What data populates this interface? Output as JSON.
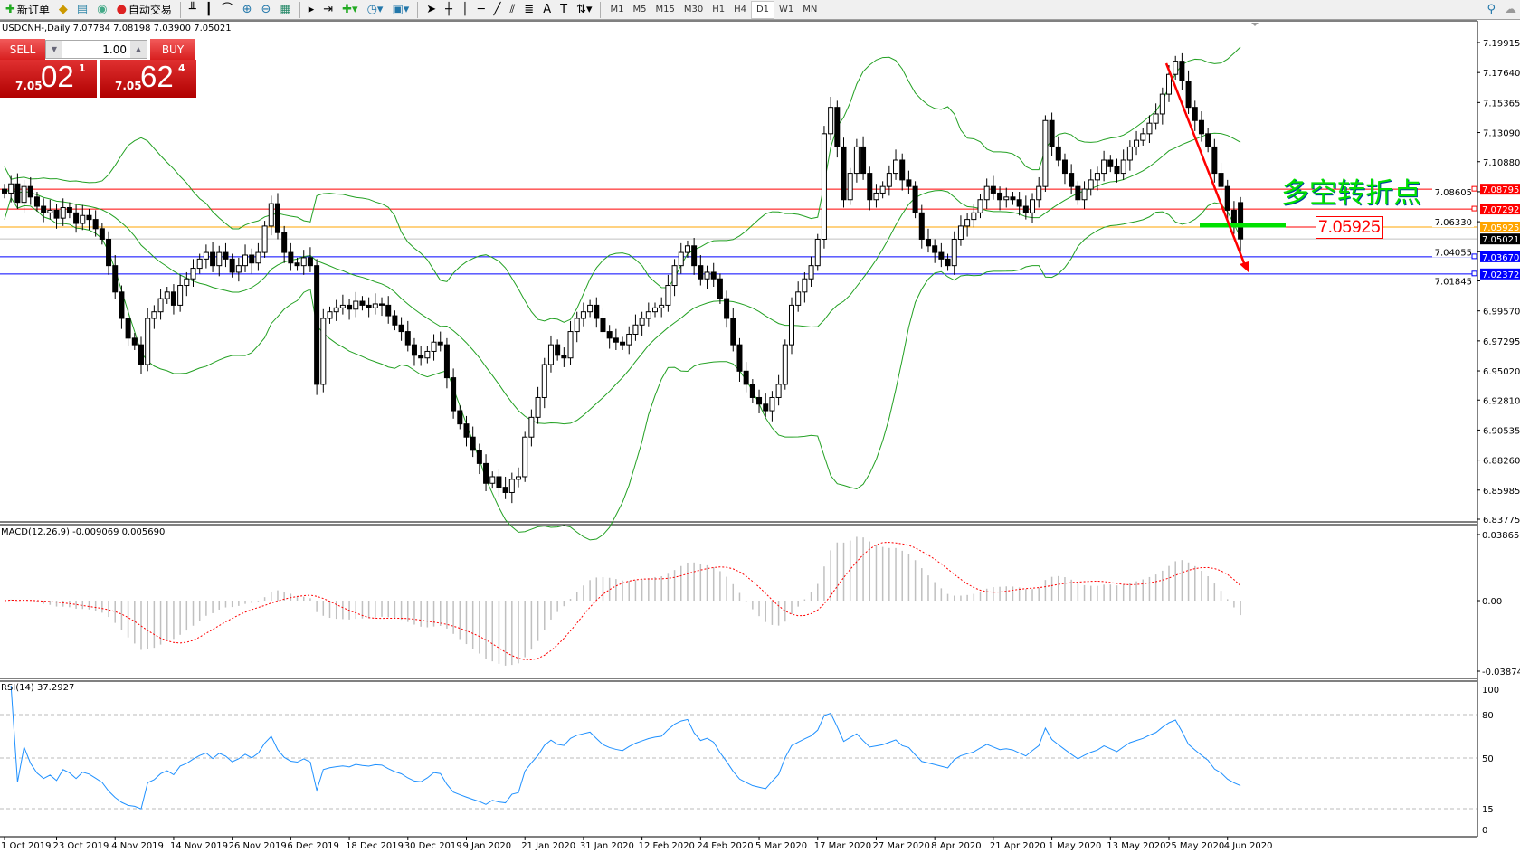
{
  "toolbar": {
    "new_order": "新订单",
    "auto_trading": "自动交易",
    "timeframes": [
      "M1",
      "M5",
      "M15",
      "M30",
      "H1",
      "H4",
      "D1",
      "W1",
      "MN"
    ],
    "active_timeframe": "D1"
  },
  "symbol_info": "USDCNH-,Daily  7.07784 7.08198 7.03900 7.05021",
  "trade_panel": {
    "sell_label": "SELL",
    "buy_label": "BUY",
    "lot": "1.00",
    "sell_small": "7.05",
    "sell_big": "02",
    "sell_pip": "1",
    "buy_small": "7.05",
    "buy_big": "62",
    "buy_pip": "4"
  },
  "annotation": {
    "text": "多空转折点",
    "level_label": "7.05925"
  },
  "macd_label": "MACD(12,26,9) -0.009069 0.005690",
  "rsi_label": "RSI(14) 37.2927",
  "chart_data": {
    "type": "candlestick",
    "symbol": "USDCNH-",
    "timeframe": "Daily",
    "price_ticks": [
      "7.19915",
      "7.17640",
      "7.15365",
      "7.13090",
      "7.10880",
      "7.08605",
      "7.06330",
      "7.04055",
      "7.01845",
      "6.99570",
      "6.97295",
      "6.95020",
      "6.92810",
      "6.90535",
      "6.88260",
      "6.85985",
      "6.83775"
    ],
    "price_range": [
      6.83775,
      7.19915
    ],
    "closes": [
      7.085,
      7.092,
      7.078,
      7.09,
      7.082,
      7.075,
      7.07,
      7.072,
      7.066,
      7.074,
      7.07,
      7.062,
      7.068,
      7.065,
      7.058,
      7.05,
      7.03,
      7.01,
      6.99,
      6.975,
      6.97,
      6.955,
      6.99,
      6.995,
      7.005,
      7.01,
      7.0,
      7.015,
      7.02,
      7.028,
      7.035,
      7.04,
      7.03,
      7.04,
      7.035,
      7.025,
      7.03,
      7.038,
      7.032,
      7.04,
      7.06,
      7.077,
      7.055,
      7.04,
      7.032,
      7.03,
      7.036,
      7.03,
      6.94,
      6.99,
      6.995,
      6.998,
      7.0,
      6.997,
      7.003,
      7.0,
      6.998,
      7.001,
      7.0,
      6.992,
      6.985,
      6.98,
      6.97,
      6.962,
      6.96,
      6.965,
      6.972,
      6.97,
      6.945,
      6.92,
      6.91,
      6.9,
      6.89,
      6.88,
      6.865,
      6.87,
      6.862,
      6.858,
      6.868,
      6.87,
      6.9,
      6.915,
      6.93,
      6.955,
      6.97,
      6.962,
      6.96,
      6.98,
      6.99,
      6.995,
      7.0,
      6.99,
      6.98,
      6.975,
      6.972,
      6.97,
      6.978,
      6.985,
      6.99,
      6.995,
      6.998,
      7.0,
      7.015,
      7.03,
      7.04,
      7.045,
      7.03,
      7.02,
      7.025,
      7.02,
      7.005,
      6.99,
      6.97,
      6.95,
      6.94,
      6.93,
      6.925,
      6.92,
      6.93,
      6.94,
      6.97,
      7.0,
      7.01,
      7.02,
      7.03,
      7.05,
      7.13,
      7.15,
      7.12,
      7.08,
      7.1,
      7.12,
      7.1,
      7.08,
      7.085,
      7.09,
      7.1,
      7.11,
      7.095,
      7.09,
      7.07,
      7.05,
      7.045,
      7.04,
      7.035,
      7.03,
      7.05,
      7.06,
      7.065,
      7.07,
      7.08,
      7.09,
      7.085,
      7.08,
      7.082,
      7.08,
      7.075,
      7.07,
      7.08,
      7.09,
      7.14,
      7.12,
      7.11,
      7.1,
      7.09,
      7.08,
      7.088,
      7.095,
      7.1,
      7.11,
      7.105,
      7.1,
      7.11,
      7.12,
      7.125,
      7.13,
      7.138,
      7.145,
      7.16,
      7.175,
      7.185,
      7.17,
      7.15,
      7.14,
      7.13,
      7.12,
      7.1,
      7.09,
      7.072,
      7.06,
      7.05021
    ],
    "last_bar": {
      "open": 7.07784,
      "high": 7.08198,
      "low": 7.039,
      "close": 7.05021
    },
    "horizontal_lines": [
      {
        "price": "7.08795",
        "color": "#ff0000"
      },
      {
        "price": "7.07292",
        "color": "#ff0000"
      },
      {
        "price": "7.05925",
        "color": "#ffa500"
      },
      {
        "price": "7.05021",
        "color": "#000000"
      },
      {
        "price": "7.03670",
        "color": "#0000ff"
      },
      {
        "price": "7.02372",
        "color": "#0000ff"
      }
    ],
    "indicators": {
      "bollinger": {
        "period": 20,
        "deviation": 2,
        "color": "#22a022"
      },
      "macd": {
        "fast": 12,
        "slow": 26,
        "signal": 9,
        "ticks": [
          "0.038653",
          "0.00",
          "-0.038745"
        ],
        "range": [
          -0.038745,
          0.038653
        ]
      },
      "rsi": {
        "period": 14,
        "ticks": [
          "100",
          "80",
          "50",
          "15",
          "0"
        ],
        "color": "#1e90ff"
      }
    },
    "x_ticks": [
      {
        "label": "1 Oct 2019",
        "bar": 0
      },
      {
        "label": "23 Oct 2019",
        "bar": 8
      },
      {
        "label": "4 Nov 2019",
        "bar": 17
      },
      {
        "label": "14 Nov 2019",
        "bar": 26
      },
      {
        "label": "26 Nov 2019",
        "bar": 35
      },
      {
        "label": "6 Dec 2019",
        "bar": 44
      },
      {
        "label": "18 Dec 2019",
        "bar": 53
      },
      {
        "label": "30 Dec 2019",
        "bar": 62
      },
      {
        "label": "9 Jan 2020",
        "bar": 71
      },
      {
        "label": "21 Jan 2020",
        "bar": 80
      },
      {
        "label": "31 Jan 2020",
        "bar": 89
      },
      {
        "label": "12 Feb 2020",
        "bar": 98
      },
      {
        "label": "24 Feb 2020",
        "bar": 107
      },
      {
        "label": "5 Mar 2020",
        "bar": 116
      },
      {
        "label": "17 Mar 2020",
        "bar": 125
      },
      {
        "label": "27 Mar 2020",
        "bar": 134
      },
      {
        "label": "8 Apr 2020",
        "bar": 143
      },
      {
        "label": "21 Apr 2020",
        "bar": 152
      },
      {
        "label": "1 May 2020",
        "bar": 161
      },
      {
        "label": "13 May 2020",
        "bar": 170
      },
      {
        "label": "25 May 2020",
        "bar": 179
      },
      {
        "label": "4 Jun 2020",
        "bar": 188
      }
    ]
  }
}
